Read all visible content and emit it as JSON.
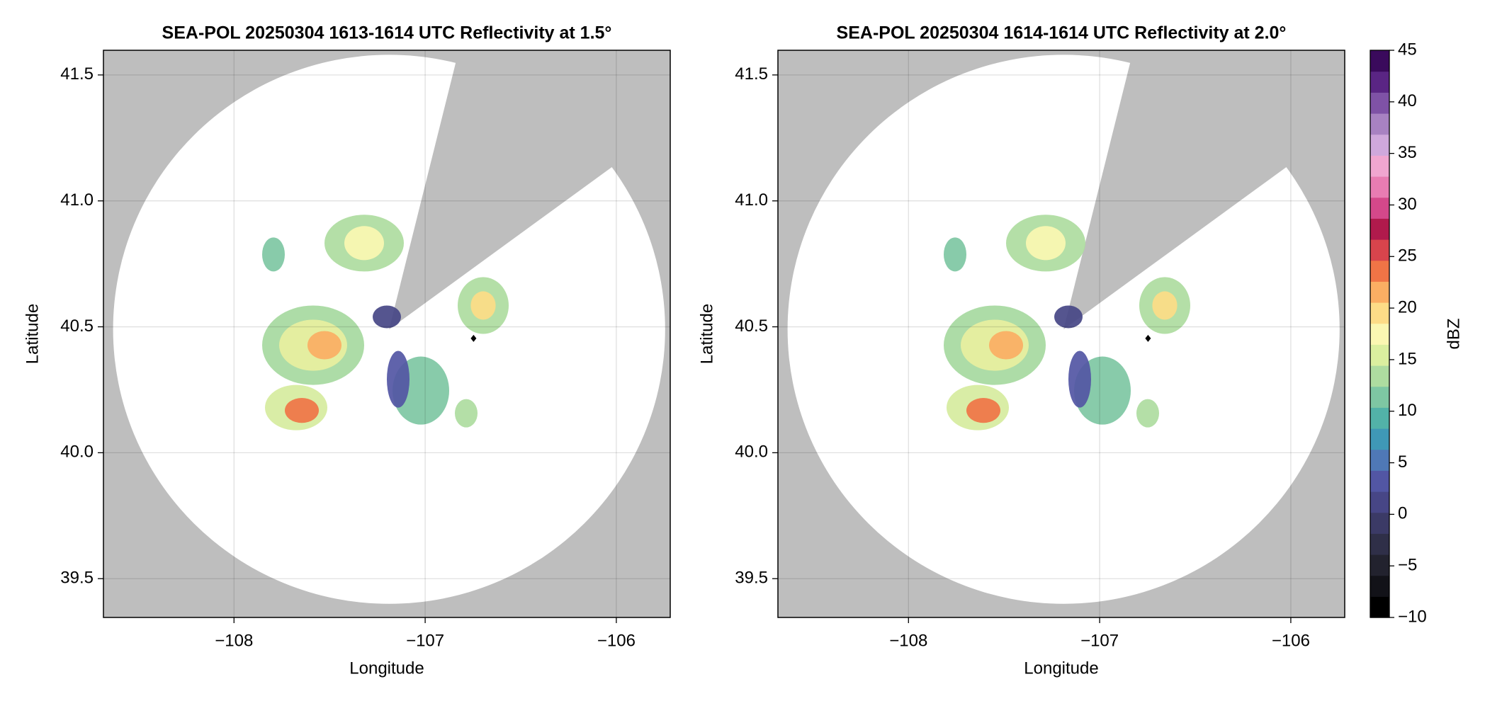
{
  "chart_data": [
    {
      "type": "radar-map",
      "title": "SEA-POL 20250304 1613-1614 UTC Reflectivity at 1.5°",
      "x_label": "Longitude",
      "y_label": "Latitude",
      "xlim": [
        -108.683,
        -105.718
      ],
      "ylim": [
        39.346,
        41.598
      ],
      "xticks": [
        {
          "value": -108,
          "label": "−108"
        },
        {
          "value": -107,
          "label": "−107"
        },
        {
          "value": -106,
          "label": "−106"
        }
      ],
      "yticks": [
        {
          "value": 39.5,
          "label": "39.5"
        },
        {
          "value": 40,
          "label": "40.0"
        },
        {
          "value": 40.5,
          "label": "40.5"
        },
        {
          "value": 41,
          "label": "41.0"
        },
        {
          "value": 41.5,
          "label": "41.5"
        }
      ],
      "grid": true
    },
    {
      "type": "radar-map",
      "title": "SEA-POL 20250304 1614-1614 UTC Reflectivity at 2.0°",
      "x_label": "Longitude",
      "y_label": "Latitude",
      "xlim": [
        -108.683,
        -105.718
      ],
      "ylim": [
        39.346,
        41.598
      ],
      "xticks": [
        {
          "value": -108,
          "label": "−108"
        },
        {
          "value": -107,
          "label": "−107"
        },
        {
          "value": -106,
          "label": "−106"
        }
      ],
      "yticks": [
        {
          "value": 39.5,
          "label": "39.5"
        },
        {
          "value": 40,
          "label": "40.0"
        },
        {
          "value": 40.5,
          "label": "40.5"
        },
        {
          "value": 41,
          "label": "41.0"
        },
        {
          "value": 41.5,
          "label": "41.5"
        }
      ],
      "grid": true
    }
  ],
  "colorbar": {
    "label": "dBZ",
    "lim": [
      -10,
      45
    ],
    "ticks": [
      {
        "value": -10,
        "label": "−10"
      },
      {
        "value": -5,
        "label": "−5"
      },
      0,
      5,
      10,
      15,
      20,
      25,
      30,
      35,
      40,
      45
    ],
    "colors": [
      "#000000",
      "#121218",
      "#22222e",
      "#2f2f48",
      "#3b3a66",
      "#474686",
      "#5256a4",
      "#4f78b6",
      "#3f98b6",
      "#52b2a8",
      "#7ec7a3",
      "#aedca0",
      "#dbef9f",
      "#fbf7b2",
      "#fddc87",
      "#fbae63",
      "#f07446",
      "#d8444c",
      "#b01a4c",
      "#d4488a",
      "#e87cb2",
      "#f0a6d0",
      "#cfa8dc",
      "#a882c2",
      "#7f52a6",
      "#5a2584",
      "#3a0a5c"
    ]
  }
}
